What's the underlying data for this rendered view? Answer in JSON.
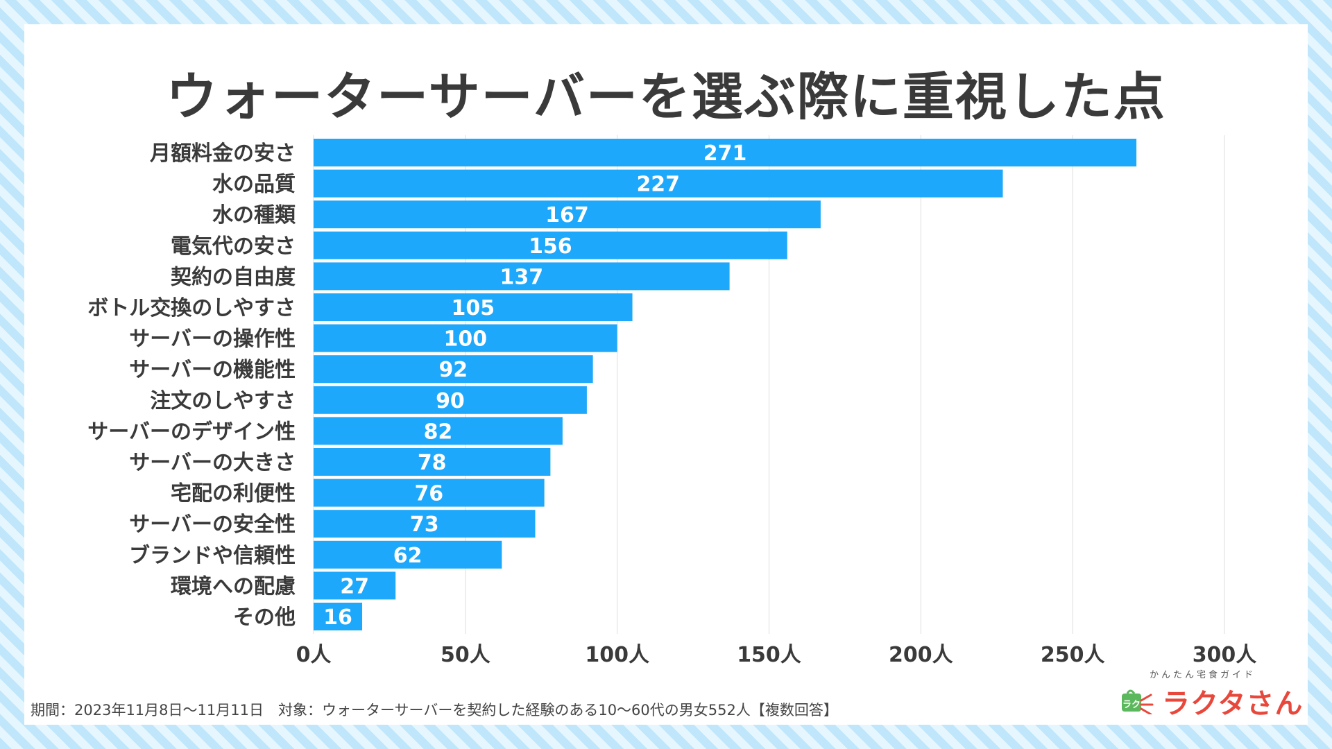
{
  "chart_data": {
    "type": "bar",
    "orientation": "horizontal",
    "title": "ウォーターサーバーを選ぶ際に重視した点",
    "categories": [
      "月額料金の安さ",
      "水の品質",
      "水の種類",
      "電気代の安さ",
      "契約の自由度",
      "ボトル交換のしやすさ",
      "サーバーの操作性",
      "サーバーの機能性",
      "注文のしやすさ",
      "サーバーのデザイン性",
      "サーバーの大きさ",
      "宅配の利便性",
      "サーバーの安全性",
      "ブランドや信頼性",
      "環境への配慮",
      "その他"
    ],
    "values": [
      271,
      227,
      167,
      156,
      137,
      105,
      100,
      92,
      90,
      82,
      78,
      76,
      73,
      62,
      27,
      16
    ],
    "xlim": [
      0,
      300
    ],
    "x_ticks": [
      0,
      50,
      100,
      150,
      200,
      250,
      300
    ],
    "x_tick_labels": [
      "0人",
      "50人",
      "100人",
      "150人",
      "200人",
      "250人",
      "300人"
    ],
    "xlabel": "",
    "ylabel": "",
    "grid": true,
    "bar_color": "#1ea8fb",
    "legend": "none"
  },
  "footnote": "期間：2023年11月8日〜11月11日　対象：ウォーターサーバーを契約した経験のある10〜60代の男女552人【複数回答】",
  "logo": {
    "tagline": "かんたん宅食ガイド",
    "name": "ラクタさん",
    "icon_text": "ラク",
    "color": "#e8483b",
    "icon_color": "#5cb85c"
  },
  "colors": {
    "background_stripe": "#bfe6fb",
    "card": "#ffffff",
    "title": "#3a3a3a",
    "grid": "#dddddd"
  }
}
